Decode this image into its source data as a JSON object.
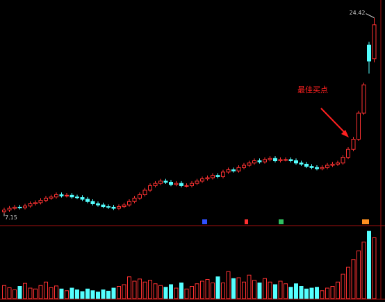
{
  "chart_data": {
    "type": "candlestick",
    "annotation": "最佳买点",
    "max_label": "24.42",
    "min_label": "7.15",
    "ylim": [
      6.5,
      25.5
    ],
    "vlim": [
      0,
      16
    ],
    "up_color": "#ff3232",
    "down_color": "#54ffff",
    "open": [
      7.3,
      7.45,
      7.6,
      7.7,
      7.65,
      7.8,
      8.0,
      8.1,
      8.3,
      8.5,
      8.6,
      8.8,
      8.7,
      8.75,
      8.6,
      8.55,
      8.4,
      8.2,
      8.0,
      7.9,
      7.75,
      7.7,
      7.6,
      7.75,
      7.9,
      8.2,
      8.5,
      8.8,
      9.2,
      9.6,
      9.8,
      10.0,
      9.9,
      9.7,
      9.8,
      9.6,
      9.6,
      9.8,
      10.0,
      10.2,
      10.3,
      10.5,
      10.4,
      10.8,
      11.0,
      10.9,
      11.2,
      11.4,
      11.6,
      11.8,
      11.7,
      11.9,
      12.0,
      11.8,
      11.9,
      11.9,
      11.8,
      11.6,
      11.5,
      11.3,
      11.2,
      11.1,
      11.2,
      11.4,
      11.5,
      11.6,
      12.1,
      12.8,
      13.7,
      16.0,
      22.0,
      20.8
    ],
    "close": [
      7.45,
      7.6,
      7.7,
      7.65,
      7.8,
      8.0,
      8.1,
      8.3,
      8.5,
      8.6,
      8.8,
      8.7,
      8.75,
      8.6,
      8.55,
      8.4,
      8.2,
      8.0,
      7.9,
      7.75,
      7.7,
      7.6,
      7.75,
      7.9,
      8.2,
      8.5,
      8.8,
      9.2,
      9.6,
      9.8,
      10.0,
      9.9,
      9.7,
      9.8,
      9.6,
      9.6,
      9.8,
      10.0,
      10.2,
      10.3,
      10.5,
      10.4,
      10.8,
      11.0,
      10.9,
      11.2,
      11.4,
      11.6,
      11.8,
      11.7,
      11.9,
      12.0,
      11.8,
      11.9,
      11.9,
      11.8,
      11.6,
      11.5,
      11.3,
      11.2,
      11.1,
      11.2,
      11.4,
      11.5,
      11.6,
      12.1,
      12.8,
      13.7,
      16.0,
      18.5,
      20.6,
      23.8
    ],
    "high": [
      7.65,
      7.8,
      7.9,
      7.9,
      8.0,
      8.2,
      8.3,
      8.5,
      8.7,
      8.8,
      9.0,
      9.0,
      8.95,
      8.95,
      8.8,
      8.75,
      8.6,
      8.4,
      8.2,
      8.1,
      7.95,
      7.9,
      7.95,
      8.1,
      8.4,
      8.7,
      9.0,
      9.4,
      9.8,
      10.0,
      10.2,
      10.2,
      10.1,
      10.0,
      10.0,
      9.8,
      10.0,
      10.2,
      10.4,
      10.5,
      10.7,
      10.7,
      11.0,
      11.2,
      11.2,
      11.4,
      11.6,
      11.8,
      12.0,
      12.0,
      12.1,
      12.2,
      12.2,
      12.1,
      12.1,
      12.1,
      12.0,
      11.8,
      11.7,
      11.5,
      11.4,
      11.4,
      11.6,
      11.7,
      11.8,
      12.3,
      13.0,
      13.9,
      16.2,
      18.7,
      22.3,
      24.42
    ],
    "low": [
      7.15,
      7.3,
      7.45,
      7.5,
      7.5,
      7.65,
      7.85,
      7.95,
      8.15,
      8.35,
      8.45,
      8.55,
      8.55,
      8.45,
      8.4,
      8.25,
      8.05,
      7.85,
      7.75,
      7.6,
      7.55,
      7.45,
      7.45,
      7.6,
      7.75,
      8.05,
      8.35,
      8.65,
      9.05,
      9.45,
      9.65,
      9.75,
      9.55,
      9.55,
      9.45,
      9.45,
      9.45,
      9.65,
      9.85,
      10.05,
      10.15,
      10.25,
      10.25,
      10.65,
      10.75,
      10.75,
      11.05,
      11.25,
      11.45,
      11.55,
      11.55,
      11.75,
      11.65,
      11.65,
      11.75,
      11.65,
      11.45,
      11.35,
      11.15,
      11.05,
      10.95,
      10.95,
      11.05,
      11.25,
      11.35,
      11.45,
      11.95,
      12.65,
      13.55,
      15.85,
      19.5,
      20.5
    ],
    "volume": [
      3,
      2.5,
      2,
      2.8,
      3.5,
      2.4,
      2.2,
      3,
      3.8,
      2.5,
      2.9,
      2.2,
      1.8,
      2.4,
      2,
      1.6,
      2.2,
      1.8,
      1.5,
      2,
      1.7,
      2.4,
      2.8,
      3.2,
      5,
      4,
      4.5,
      3.8,
      4.2,
      3.4,
      3,
      2.6,
      3.2,
      2.4,
      3.6,
      2.2,
      2.8,
      3.4,
      4,
      4.4,
      3.6,
      5,
      3.6,
      6.2,
      4.6,
      4.8,
      3.8,
      5.4,
      4.2,
      3.6,
      4.6,
      3.8,
      3.2,
      4,
      3.4,
      2.6,
      3.4,
      2.8,
      2.2,
      2.4,
      2.6,
      1.8,
      2.4,
      2.8,
      3.8,
      5.6,
      7.2,
      9,
      11,
      13,
      15.5,
      14
    ]
  }
}
